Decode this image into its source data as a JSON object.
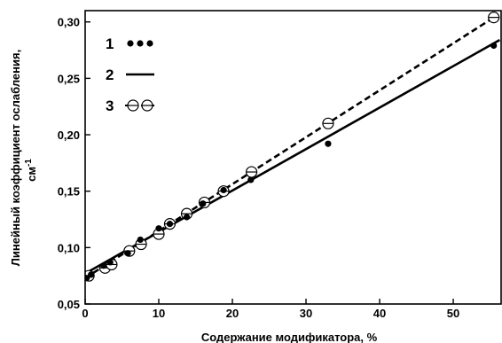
{
  "chart_data": {
    "type": "scatter",
    "xlabel": "Содержание модификатора, %",
    "ylabel_line1": "Линейный коэффициент ослабления,",
    "ylabel_unit_base": "см",
    "ylabel_unit_sup": "-1",
    "xlim": [
      0,
      56.5
    ],
    "ylim": [
      0.05,
      0.31
    ],
    "xticks": [
      0,
      10,
      20,
      30,
      40,
      50
    ],
    "yticks": [
      0.05,
      0.1,
      0.15,
      0.2,
      0.25,
      0.3
    ],
    "xtick_labels": [
      "0",
      "10",
      "20",
      "30",
      "40",
      "50"
    ],
    "ytick_labels": [
      "0,05",
      "0,10",
      "0,15",
      "0,20",
      "0,25",
      "0,30"
    ],
    "grid": false,
    "legend_position": "top-left",
    "series": [
      {
        "id": "1",
        "legend_label": "1",
        "style": "filled-dots",
        "points": [
          {
            "x": 0.2,
            "y": 0.073
          },
          {
            "x": 0.8,
            "y": 0.076
          },
          {
            "x": 2.5,
            "y": 0.084
          },
          {
            "x": 3.4,
            "y": 0.087
          },
          {
            "x": 5.8,
            "y": 0.095
          },
          {
            "x": 7.5,
            "y": 0.107
          },
          {
            "x": 10.0,
            "y": 0.117
          },
          {
            "x": 11.5,
            "y": 0.121
          },
          {
            "x": 13.8,
            "y": 0.127
          },
          {
            "x": 16.0,
            "y": 0.139
          },
          {
            "x": 18.8,
            "y": 0.151
          },
          {
            "x": 22.5,
            "y": 0.16
          },
          {
            "x": 33.0,
            "y": 0.192
          },
          {
            "x": 55.5,
            "y": 0.279
          }
        ]
      },
      {
        "id": "2",
        "legend_label": "2",
        "style": "solid-line",
        "points": [
          {
            "x": 0,
            "y": 0.077
          },
          {
            "x": 56.3,
            "y": 0.284
          }
        ]
      },
      {
        "id": "3",
        "legend_label": "3",
        "style": "dashed-line-open-circles",
        "line": [
          {
            "x": 0,
            "y": 0.073
          },
          {
            "x": 56.0,
            "y": 0.306
          }
        ],
        "points": [
          {
            "x": 0.5,
            "y": 0.075
          },
          {
            "x": 2.7,
            "y": 0.082
          },
          {
            "x": 3.6,
            "y": 0.085
          },
          {
            "x": 6.0,
            "y": 0.097
          },
          {
            "x": 7.6,
            "y": 0.103
          },
          {
            "x": 10.0,
            "y": 0.112
          },
          {
            "x": 11.5,
            "y": 0.121
          },
          {
            "x": 13.8,
            "y": 0.13
          },
          {
            "x": 16.2,
            "y": 0.14
          },
          {
            "x": 18.8,
            "y": 0.15
          },
          {
            "x": 22.6,
            "y": 0.167
          },
          {
            "x": 33.0,
            "y": 0.21
          },
          {
            "x": 55.5,
            "y": 0.304
          }
        ]
      }
    ]
  }
}
